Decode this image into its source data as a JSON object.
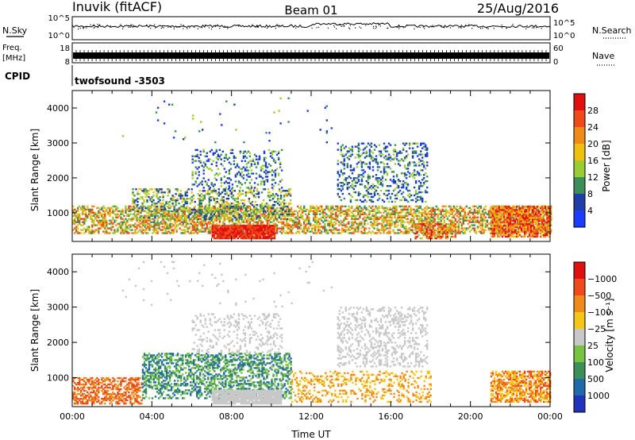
{
  "header": {
    "station": "Inuvik (fitACF)",
    "beam": "Beam 01",
    "date": "25/Aug/2016"
  },
  "strip_labels": {
    "nsky": "N.Sky",
    "nsearch": "N.Search",
    "freq": "Freq.",
    "freq_unit": "[MHz]",
    "nave": "Nave",
    "cpid": "CPID",
    "cpid_value": "twofsound -3503",
    "noise_ticks": [
      "10^5",
      "10^0"
    ],
    "freq_ticks": [
      "18",
      "8"
    ],
    "nave_ticks": [
      "60",
      "0"
    ]
  },
  "chart_data": [
    {
      "type": "heatmap",
      "name": "power",
      "xlabel": "Time UT",
      "ylabel": "Slant Range [km]",
      "xlim": [
        0,
        24
      ],
      "ylim": [
        180,
        4500
      ],
      "y_ticks": [
        1000,
        2000,
        3000,
        4000
      ],
      "colorbar": {
        "label": "Power [dB]",
        "levels": [
          "4",
          "8",
          "12",
          "16",
          "20",
          "24",
          "28"
        ],
        "colors": [
          "#1a3dff",
          "#1f3ea8",
          "#3d8f5a",
          "#9acd32",
          "#f0c010",
          "#f08a18",
          "#f04a1a",
          "#e01010"
        ]
      },
      "regions": [
        {
          "t": [
            0.0,
            24.0
          ],
          "r": [
            400,
            1200
          ],
          "density": 0.55,
          "level": [
            2,
            6
          ]
        },
        {
          "t": [
            7.0,
            10.2
          ],
          "r": [
            250,
            650
          ],
          "density": 0.95,
          "level": [
            6,
            7
          ]
        },
        {
          "t": [
            3.0,
            11.0
          ],
          "r": [
            800,
            1700
          ],
          "density": 0.35,
          "level": [
            1,
            4
          ]
        },
        {
          "t": [
            6.0,
            10.5
          ],
          "r": [
            1700,
            2800
          ],
          "density": 0.22,
          "level": [
            0,
            3
          ]
        },
        {
          "t": [
            13.3,
            17.8
          ],
          "r": [
            1300,
            3000
          ],
          "density": 0.28,
          "level": [
            0,
            3
          ]
        },
        {
          "t": [
            17.2,
            19.2
          ],
          "r": [
            250,
            700
          ],
          "density": 0.6,
          "level": [
            3,
            7
          ]
        },
        {
          "t": [
            21.0,
            24.0
          ],
          "r": [
            300,
            1200
          ],
          "density": 0.7,
          "level": [
            4,
            7
          ]
        },
        {
          "t": [
            2.5,
            13.0
          ],
          "r": [
            3000,
            4300
          ],
          "density": 0.015,
          "level": [
            0,
            3
          ]
        }
      ]
    },
    {
      "type": "heatmap",
      "name": "velocity",
      "xlabel": "Time UT",
      "ylabel": "Slant Range [km]",
      "xlim": [
        0,
        24
      ],
      "ylim": [
        180,
        4500
      ],
      "y_ticks": [
        1000,
        2000,
        3000,
        4000
      ],
      "x_ticks": [
        "00:00",
        "04:00",
        "08:00",
        "12:00",
        "16:00",
        "20:00",
        "00:00"
      ],
      "colorbar": {
        "label": "Velocity [m s⁻¹]",
        "levels": [
          "1000",
          "500",
          "100",
          "25",
          "−25",
          "−100",
          "−500",
          "−1000"
        ],
        "colors": [
          "#2233bb",
          "#1f6aa8",
          "#3d8f5a",
          "#76c442",
          "#c8c8c8",
          "#f5c518",
          "#f08a18",
          "#f04a1a",
          "#e01010"
        ]
      },
      "regions": [
        {
          "t": [
            0.0,
            3.5
          ],
          "r": [
            250,
            1000
          ],
          "density": 0.55,
          "level": [
            6,
            7
          ]
        },
        {
          "t": [
            3.5,
            11.0
          ],
          "r": [
            400,
            1700
          ],
          "density": 0.45,
          "level": [
            1,
            3
          ]
        },
        {
          "t": [
            7.0,
            10.5
          ],
          "r": [
            250,
            650
          ],
          "density": 0.95,
          "level": [
            4,
            4
          ]
        },
        {
          "t": [
            6.0,
            10.5
          ],
          "r": [
            1700,
            2800
          ],
          "density": 0.2,
          "level": [
            4,
            4
          ]
        },
        {
          "t": [
            13.3,
            17.8
          ],
          "r": [
            1300,
            3000
          ],
          "density": 0.26,
          "level": [
            4,
            4
          ]
        },
        {
          "t": [
            11.0,
            18.0
          ],
          "r": [
            300,
            1200
          ],
          "density": 0.25,
          "level": [
            5,
            6
          ]
        },
        {
          "t": [
            21.0,
            24.0
          ],
          "r": [
            300,
            1200
          ],
          "density": 0.65,
          "level": [
            5,
            7
          ]
        },
        {
          "t": [
            2.5,
            13.0
          ],
          "r": [
            3000,
            4300
          ],
          "density": 0.015,
          "level": [
            4,
            4
          ]
        }
      ]
    }
  ]
}
